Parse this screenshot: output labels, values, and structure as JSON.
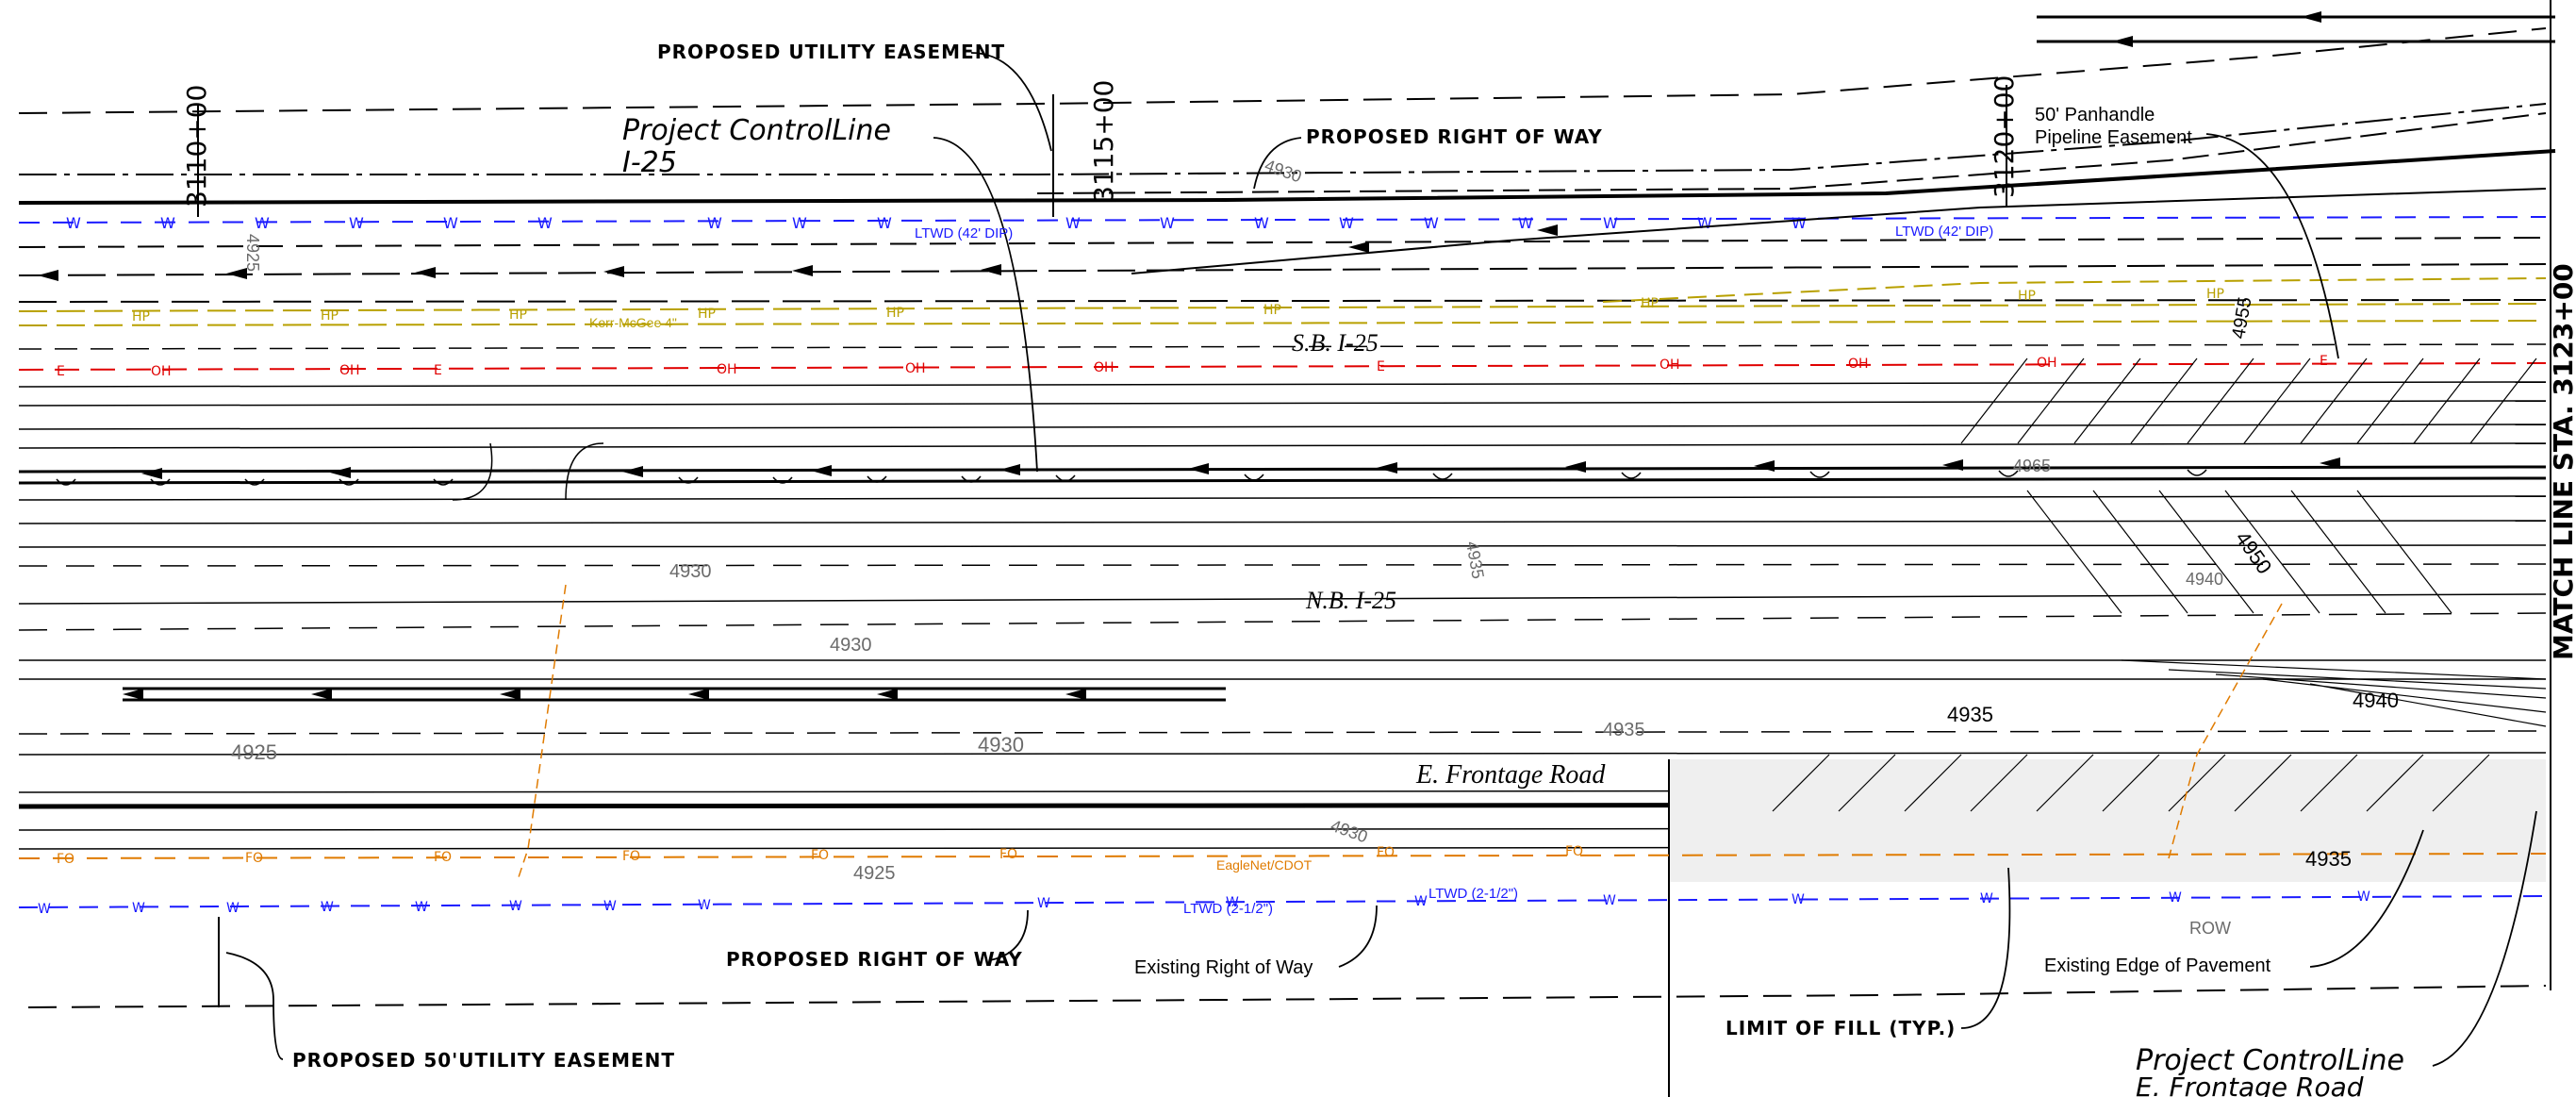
{
  "drawing": {
    "labels": {
      "proposed_utility_easement": "PROPOSED UTILITY EASEMENT",
      "proposed_row_top": "PROPOSED RIGHT OF WAY",
      "project_control_line": "Project ControlLine",
      "i25": "I-25",
      "panhandle_line1": "50' Panhandle",
      "panhandle_line2": "Pipeline Easement",
      "sb_i25": "S.B. I-25",
      "nb_i25": "N.B. I-25",
      "e_frontage_road": "E. Frontage Road",
      "proposed_row_bottom": "PROPOSED RIGHT OF WAY",
      "existing_row": "Existing Right of Way",
      "limit_of_fill": "LIMIT OF FILL (TYP.)",
      "existing_edge_pavement": "Existing Edge of Pavement",
      "proposed_50_utility_easement": "PROPOSED 50'UTILITY EASEMENT",
      "project_control_line_bottom": "Project ControlLine",
      "e_frontage_road_bottom": "E. Frontage Road",
      "match_line": "MATCH LINE STA. 3123+00",
      "row_small": "ROW"
    },
    "stations": {
      "s3110": "3110+00",
      "s3115": "3115+00",
      "s3120": "3120+00"
    },
    "utilities": {
      "ltwd_42_left": "LTWD (42' DIP)",
      "ltwd_42_right": "LTWD (42' DIP)",
      "ltwd_2half_a": "LTWD (2-1/2\")",
      "ltwd_2half_b": "LTWD (2-1/2\")",
      "kerr_mcgee": "Kerr-McGee 4\"",
      "eaglenet": "EagleNet/CDOT"
    },
    "contours": {
      "c4925_top": "4925",
      "c4930_top": "4930",
      "c4925_mid": "4925",
      "c4930_mid": "4930",
      "c4930_a": "4930",
      "c4930_b": "4930",
      "c4935_a": "4935",
      "c4935_b": "4935",
      "c4940_a": "4940",
      "c4940_bold": "4940",
      "c4935_bold_a": "4935",
      "c4935_bold_b": "4935",
      "c4950": "4950",
      "c4955": "4955",
      "c4965": "4965",
      "c4930_c": "4930",
      "c4925_low": "4925"
    },
    "colors": {
      "water": "#1a1aff",
      "gas": "#b8a000",
      "electric": "#e00000",
      "fiber": "#e07b00",
      "ink": "#000000",
      "contour": "#7a7a7a"
    }
  }
}
